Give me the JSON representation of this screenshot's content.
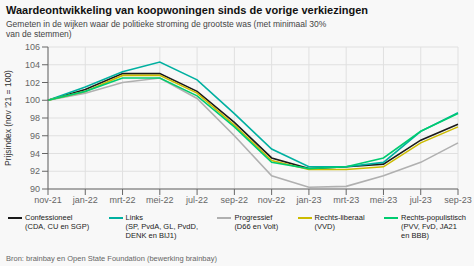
{
  "chart_data": {
    "type": "line",
    "title": "Waardeontwikkeling van koopwoningen sinds de vorige verkiezingen",
    "subtitle": "Gemeten in de wijken waar de politieke stroming de grootste was (met minimaal 30%\nvan de stemmen)",
    "y_label": "Prijsindex (nov '21 = 100)",
    "annotations": [
      "Bron: brainbay en Open State Foundation (bewerking brainbay)"
    ],
    "categories": [
      "nov-21",
      "jan-22",
      "mrt-22",
      "mei-22",
      "jul-22",
      "sep-22",
      "nov-22",
      "jan-23",
      "mrt-23",
      "mei-23",
      "jul-23",
      "sep-23"
    ],
    "series": [
      {
        "name": "Confessioneel\n(CDA, CU en SGP)",
        "color": "#1a1a1a",
        "values": [
          100.0,
          101.2,
          103.0,
          103.0,
          101.0,
          97.5,
          93.5,
          92.3,
          92.5,
          92.8,
          95.5,
          97.3
        ]
      },
      {
        "name": "Links\n(SP, PvdA, GL, PvdD,\nDENK en BIJ1)",
        "color": "#00b0a0",
        "values": [
          100.0,
          101.5,
          103.2,
          104.3,
          102.3,
          98.5,
          94.5,
          92.5,
          92.5,
          93.0,
          96.5,
          98.6
        ]
      },
      {
        "name": "Progressief\n(D66 en Volt)",
        "color": "#b0b0b0",
        "values": [
          100.0,
          100.8,
          102.0,
          102.5,
          100.2,
          96.0,
          91.5,
          90.2,
          90.3,
          91.5,
          93.0,
          95.2
        ]
      },
      {
        "name": "Rechts-liberaal\n(VVD)",
        "color": "#ccbb00",
        "values": [
          100.0,
          101.0,
          102.8,
          102.8,
          100.8,
          97.2,
          93.2,
          92.2,
          92.2,
          92.5,
          95.2,
          97.0
        ]
      },
      {
        "name": "Rechts-populistisch\n(PVV, FvD, JA21\nen BBB)",
        "color": "#00cc70",
        "values": [
          100.0,
          101.0,
          102.5,
          102.5,
          100.5,
          97.0,
          93.0,
          92.3,
          92.5,
          93.5,
          96.5,
          98.5
        ]
      }
    ],
    "ylim": [
      90,
      106
    ],
    "yticks": [
      90,
      92,
      94,
      96,
      98,
      100,
      102,
      104,
      106
    ],
    "grid": true,
    "legend": "bottom"
  }
}
